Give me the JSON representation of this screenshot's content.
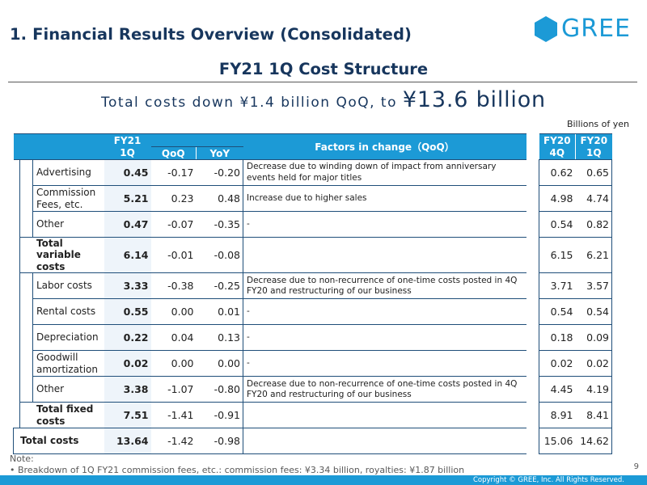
{
  "header": {
    "section_title": "1. Financial Results Overview (Consolidated)",
    "logo_text": "GREE"
  },
  "slide": {
    "title": "FY21 1Q Cost Structure",
    "subtitle_prefix": "Total costs down ¥1.4 billion QoQ, to ",
    "subtitle_amount": "¥13.6 billion",
    "units": "Billions of yen"
  },
  "table": {
    "headers": {
      "current": "FY21\n1Q",
      "qoq": "QoQ",
      "yoy": "YoY",
      "factors": "Factors in change（QoQ）",
      "prev_q": "FY20\n4Q",
      "prev_y": "FY20\n1Q"
    },
    "rows": [
      {
        "label": "Advertising",
        "fy21_1q": "0.45",
        "qoq": "-0.17",
        "yoy": "-0.20",
        "factor": "Decrease due to winding down of impact from anniversary events held for major titles",
        "fy20_4q": "0.62",
        "fy20_1q": "0.65"
      },
      {
        "label": "Commission Fees, etc.",
        "fy21_1q": "5.21",
        "qoq": "0.23",
        "yoy": "0.48",
        "factor": "Increase due to higher sales",
        "fy20_4q": "4.98",
        "fy20_1q": "4.74"
      },
      {
        "label": "Other",
        "fy21_1q": "0.47",
        "qoq": "-0.07",
        "yoy": "-0.35",
        "factor": "-",
        "fy20_4q": "0.54",
        "fy20_1q": "0.82"
      },
      {
        "label": "Total variable costs",
        "fy21_1q": "6.14",
        "qoq": "-0.01",
        "yoy": "-0.08",
        "factor": "",
        "fy20_4q": "6.15",
        "fy20_1q": "6.21"
      },
      {
        "label": "Labor costs",
        "fy21_1q": "3.33",
        "qoq": "-0.38",
        "yoy": "-0.25",
        "factor": "Decrease due to non-recurrence of one-time costs posted in 4Q FY20 and restructuring of our business",
        "fy20_4q": "3.71",
        "fy20_1q": "3.57"
      },
      {
        "label": "Rental costs",
        "fy21_1q": "0.55",
        "qoq": "0.00",
        "yoy": "0.01",
        "factor": "-",
        "fy20_4q": "0.54",
        "fy20_1q": "0.54"
      },
      {
        "label": "Depreciation",
        "fy21_1q": "0.22",
        "qoq": "0.04",
        "yoy": "0.13",
        "factor": "-",
        "fy20_4q": "0.18",
        "fy20_1q": "0.09"
      },
      {
        "label": "Goodwill amortization",
        "fy21_1q": "0.02",
        "qoq": "0.00",
        "yoy": "0.00",
        "factor": "-",
        "fy20_4q": "0.02",
        "fy20_1q": "0.02"
      },
      {
        "label": "Other",
        "fy21_1q": "3.38",
        "qoq": "-1.07",
        "yoy": "-0.80",
        "factor": "Decrease due to non-recurrence of one-time costs posted in 4Q FY20 and restructuring of our business",
        "fy20_4q": "4.45",
        "fy20_1q": "4.19"
      },
      {
        "label": "Total fixed costs",
        "fy21_1q": "7.51",
        "qoq": "-1.41",
        "yoy": "-0.91",
        "factor": "",
        "fy20_4q": "8.91",
        "fy20_1q": "8.41"
      },
      {
        "label": "Total costs",
        "fy21_1q": "13.64",
        "qoq": "-1.42",
        "yoy": "-0.98",
        "factor": "",
        "fy20_4q": "15.06",
        "fy20_1q": "14.62"
      }
    ]
  },
  "note": {
    "heading": "Note:",
    "text": "• Breakdown of 1Q FY21 commission fees, etc.: commission fees: ¥3.34 billion, royalties: ¥1.87 billion"
  },
  "page_number": "9",
  "footer": {
    "copyright": "Copyright © GREE, Inc. All Rights Reserved."
  },
  "colors": {
    "brand_blue": "#1c9ad6",
    "title_navy": "#17365d"
  }
}
